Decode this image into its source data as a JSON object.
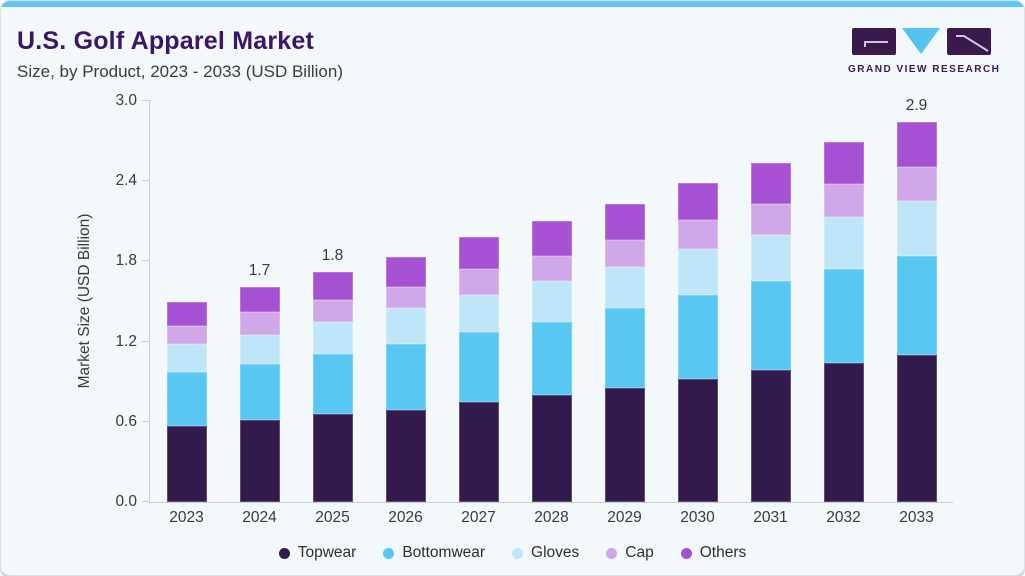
{
  "header": {
    "title": "U.S. Golf Apparel Market",
    "subtitle": "Size, by Product, 2023 - 2033 (USD Billion)"
  },
  "logo": {
    "text": "GRAND VIEW RESEARCH"
  },
  "theme": {
    "accent_bar": "#5fc6f0",
    "card_background": "#f3f8fb",
    "title_color": "#3b1666",
    "text_color": "#3a3a3a",
    "axis_line_color": "#c9ced4",
    "logo_purple": "#3a1a4e",
    "logo_cyan": "#55c3ee"
  },
  "chart_data": {
    "type": "bar",
    "stacked": true,
    "title": "U.S. Golf Apparel Market",
    "subtitle": "Size, by Product, 2023 - 2033 (USD Billion)",
    "xlabel": "",
    "ylabel": "Market Size (USD Billion)",
    "ylim": [
      0,
      3.0
    ],
    "yticks": [
      0,
      0.6,
      1.2,
      1.8,
      2.4,
      3.0
    ],
    "grid": false,
    "legend_position": "bottom",
    "categories": [
      "2023",
      "2024",
      "2025",
      "2026",
      "2027",
      "2028",
      "2029",
      "2030",
      "2031",
      "2032",
      "2033"
    ],
    "series": [
      {
        "name": "Topwear",
        "color": "#331a4d",
        "values": [
          0.57,
          0.61,
          0.66,
          0.69,
          0.75,
          0.8,
          0.85,
          0.92,
          0.99,
          1.04,
          1.1
        ]
      },
      {
        "name": "Bottomwear",
        "color": "#58c8f3",
        "values": [
          0.4,
          0.42,
          0.45,
          0.49,
          0.52,
          0.55,
          0.6,
          0.63,
          0.66,
          0.7,
          0.74
        ]
      },
      {
        "name": "Gloves",
        "color": "#bfe6f8",
        "values": [
          0.21,
          0.22,
          0.24,
          0.27,
          0.28,
          0.3,
          0.31,
          0.34,
          0.35,
          0.39,
          0.41
        ]
      },
      {
        "name": "Cap",
        "color": "#d0a7e8",
        "values": [
          0.14,
          0.17,
          0.16,
          0.16,
          0.19,
          0.19,
          0.2,
          0.22,
          0.23,
          0.25,
          0.26
        ]
      },
      {
        "name": "Others",
        "color": "#a651d4",
        "values": [
          0.18,
          0.19,
          0.21,
          0.22,
          0.24,
          0.26,
          0.27,
          0.28,
          0.31,
          0.31,
          0.33
        ]
      }
    ],
    "bar_labels": {
      "2024": "1.7",
      "2025": "1.8",
      "2033": "2.9"
    }
  }
}
